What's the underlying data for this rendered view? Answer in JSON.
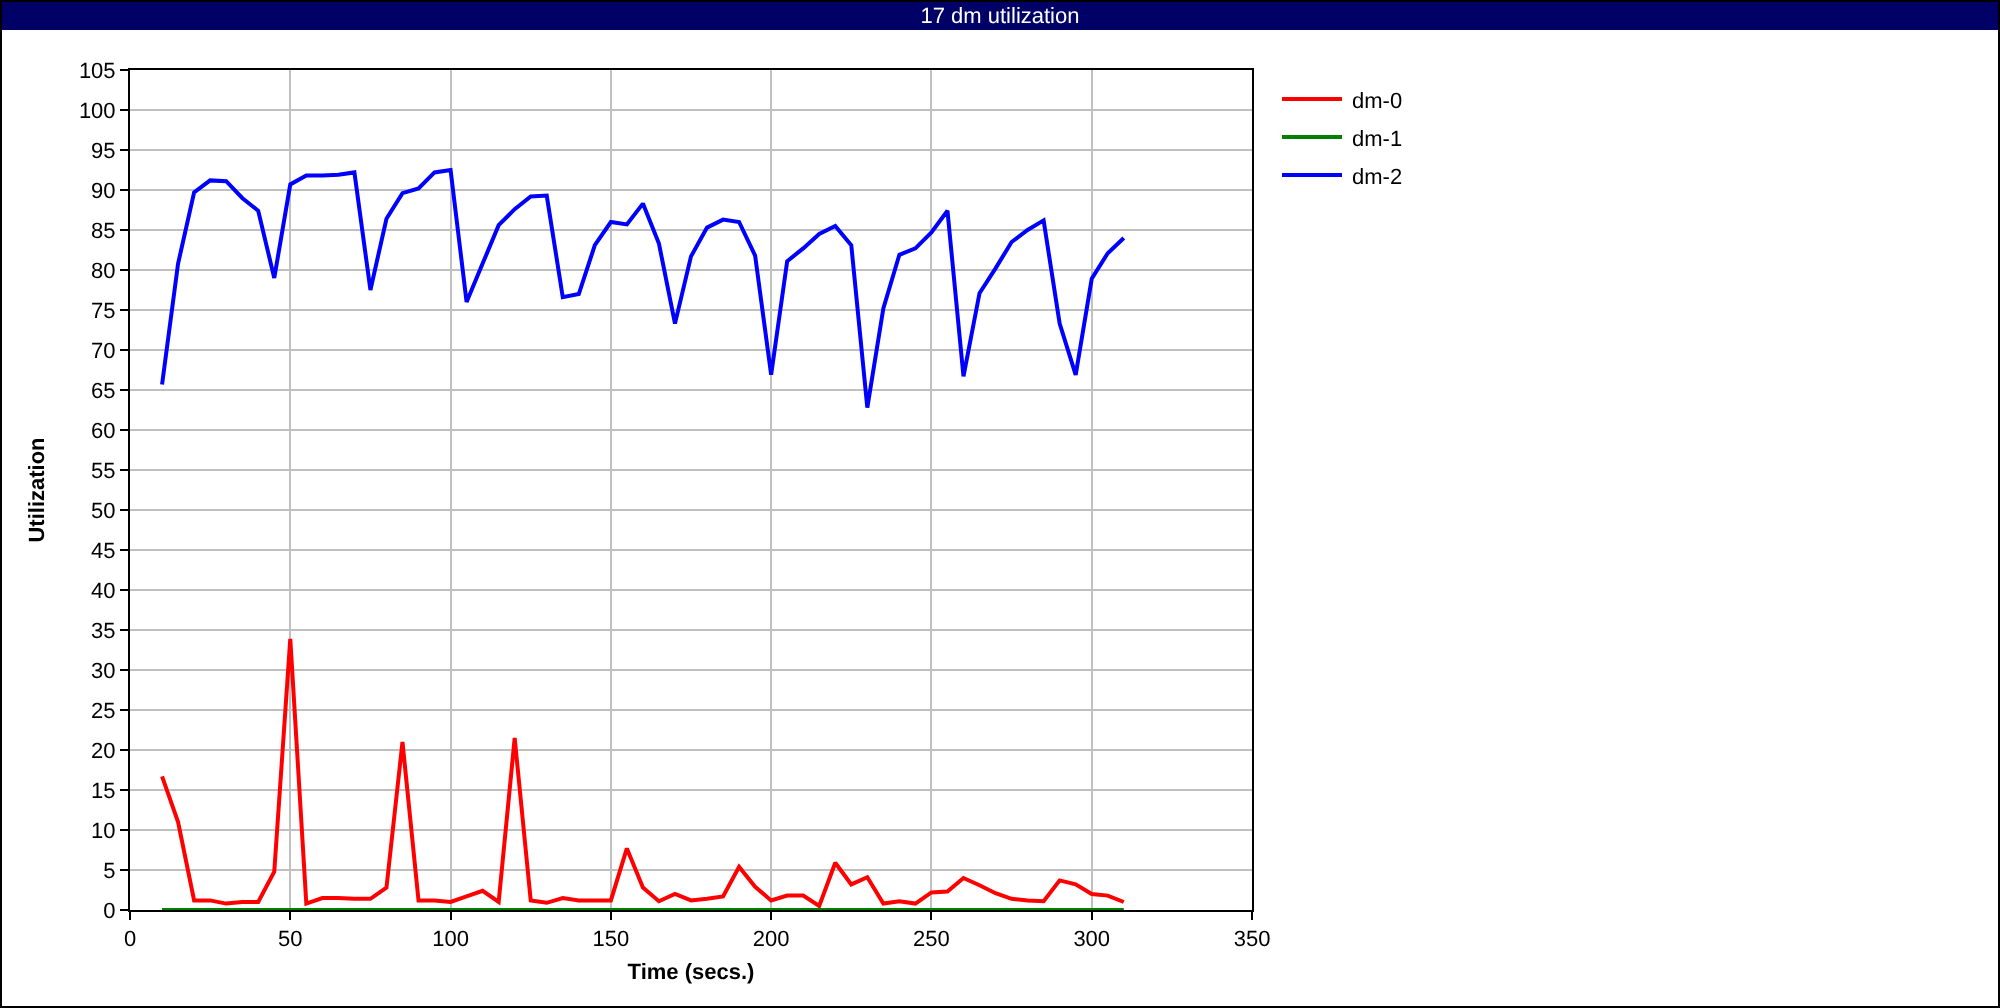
{
  "chart_data": {
    "type": "line",
    "title": "17 dm utilization",
    "xlabel": "Time (secs.)",
    "ylabel": "Utilization",
    "x": [
      10,
      15,
      20,
      25,
      30,
      35,
      40,
      45,
      50,
      55,
      60,
      65,
      70,
      75,
      80,
      85,
      90,
      95,
      100,
      105,
      110,
      115,
      120,
      125,
      130,
      135,
      140,
      145,
      150,
      155,
      160,
      165,
      170,
      175,
      180,
      185,
      190,
      195,
      200,
      205,
      210,
      215,
      220,
      225,
      230,
      235,
      240,
      245,
      250,
      255,
      260,
      265,
      270,
      275,
      280,
      285,
      290,
      295,
      300,
      305,
      310
    ],
    "xlim": [
      0,
      350
    ],
    "xticks": [
      0,
      50,
      100,
      150,
      200,
      250,
      300,
      350
    ],
    "ylim": [
      0,
      105
    ],
    "yticks": [
      0,
      5,
      10,
      15,
      20,
      25,
      30,
      35,
      40,
      45,
      50,
      55,
      60,
      65,
      70,
      75,
      80,
      85,
      90,
      95,
      100,
      105
    ],
    "grid": true,
    "legend": "top right",
    "line_style": "solid",
    "series": [
      {
        "name": "dm-0",
        "color": "#ff0000",
        "values": [
          16.7,
          11,
          1.2,
          1.2,
          0.8,
          1,
          1,
          4.8,
          33.9,
          0.8,
          1.5,
          1.5,
          1.4,
          1.4,
          2.8,
          21,
          1.2,
          1.2,
          1,
          1.7,
          2.4,
          1,
          21.5,
          1.2,
          0.9,
          1.5,
          1.2,
          1.2,
          1.2,
          7.7,
          2.8,
          1.1,
          2,
          1.2,
          1.4,
          1.7,
          5.4,
          2.9,
          1.2,
          1.8,
          1.8,
          0.5,
          5.9,
          3.2,
          4.1,
          0.8,
          1.1,
          0.8,
          2.2,
          2.3,
          4,
          3.1,
          2.1,
          1.4,
          1.2,
          1.1,
          3.7,
          3.2,
          2,
          1.8,
          1
        ]
      },
      {
        "name": "dm-1",
        "color": "#008000",
        "values": [
          0,
          0,
          0,
          0,
          0,
          0,
          0,
          0,
          0,
          0,
          0,
          0,
          0,
          0,
          0,
          0,
          0,
          0,
          0,
          0,
          0,
          0,
          0,
          0,
          0,
          0,
          0,
          0,
          0,
          0,
          0,
          0,
          0,
          0,
          0,
          0,
          0,
          0,
          0,
          0,
          0,
          0,
          0,
          0,
          0,
          0,
          0,
          0,
          0,
          0,
          0,
          0,
          0,
          0,
          0,
          0,
          0,
          0,
          0,
          0,
          0
        ]
      },
      {
        "name": "dm-2",
        "color": "#0000ff",
        "values": [
          65.7,
          80.8,
          89.7,
          91.2,
          91.1,
          89,
          87.4,
          79,
          90.7,
          91.8,
          91.8,
          91.9,
          92.2,
          77.5,
          86.4,
          89.6,
          90.2,
          92.2,
          92.5,
          76,
          80.8,
          85.6,
          87.6,
          89.2,
          89.3,
          76.6,
          77,
          83.1,
          86,
          85.7,
          88.3,
          83.3,
          73.3,
          81.7,
          85.3,
          86.3,
          86,
          81.8,
          66.9,
          81.1,
          82.7,
          84.5,
          85.5,
          83.1,
          62.8,
          75.2,
          81.9,
          82.7,
          84.7,
          87.4,
          66.7,
          77.1,
          80.2,
          83.5,
          85,
          86.2,
          73.3,
          66.9,
          78.9,
          82.1,
          84
        ]
      }
    ]
  }
}
